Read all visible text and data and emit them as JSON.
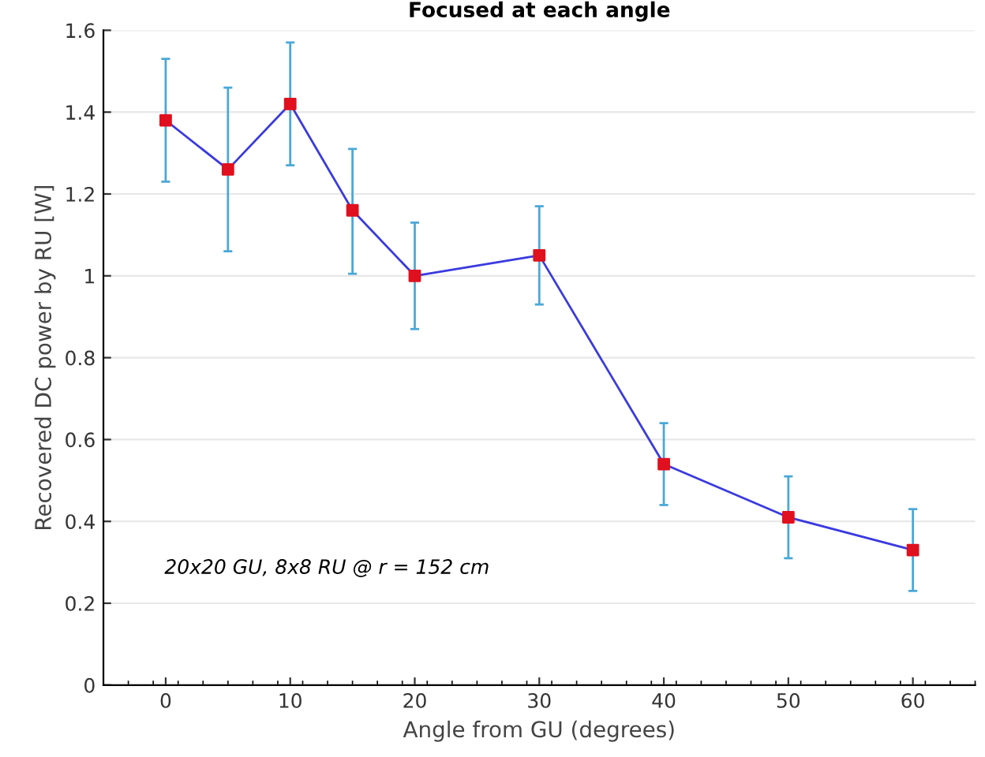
{
  "chart_data": {
    "type": "line",
    "title": "Focused at each angle",
    "xlabel": "Angle from GU (degrees)",
    "ylabel": "Recovered DC power by RU [W]",
    "x": [
      0,
      5,
      10,
      15,
      20,
      30,
      40,
      50,
      60
    ],
    "series": [
      {
        "color": "#3a3ae0",
        "colors": [
          "#e0101e",
          "#e0101e",
          "#e0101e",
          "#e0101e",
          "#e0101e",
          "#e0101e",
          "#e0101e",
          "#e0101e",
          "#e0101e"
        ],
        "values": [
          1.38,
          1.26,
          1.42,
          1.16,
          1.0,
          1.05,
          0.54,
          0.41,
          0.33
        ],
        "errors": [
          [
            1.23,
            1.53
          ],
          [
            1.06,
            1.46
          ],
          [
            1.27,
            1.57
          ],
          [
            1.005,
            1.31
          ],
          [
            0.87,
            1.13
          ],
          [
            0.93,
            1.17
          ],
          [
            0.44,
            0.64
          ],
          [
            0.31,
            0.51
          ],
          [
            0.23,
            0.43
          ]
        ]
      }
    ],
    "marker": "square",
    "line_style": "solid",
    "xlim": [
      -5,
      65
    ],
    "xticks": [
      0,
      10,
      20,
      30,
      40,
      50,
      60
    ],
    "ylim": [
      0,
      1.6
    ],
    "yticks": [
      0,
      0.2,
      0.4,
      0.6,
      0.8,
      1,
      1.2,
      1.4,
      1.6
    ],
    "grid": "y",
    "annotations": [
      "20x20 GU, 8x8 RU @ r = 152 cm"
    ]
  }
}
